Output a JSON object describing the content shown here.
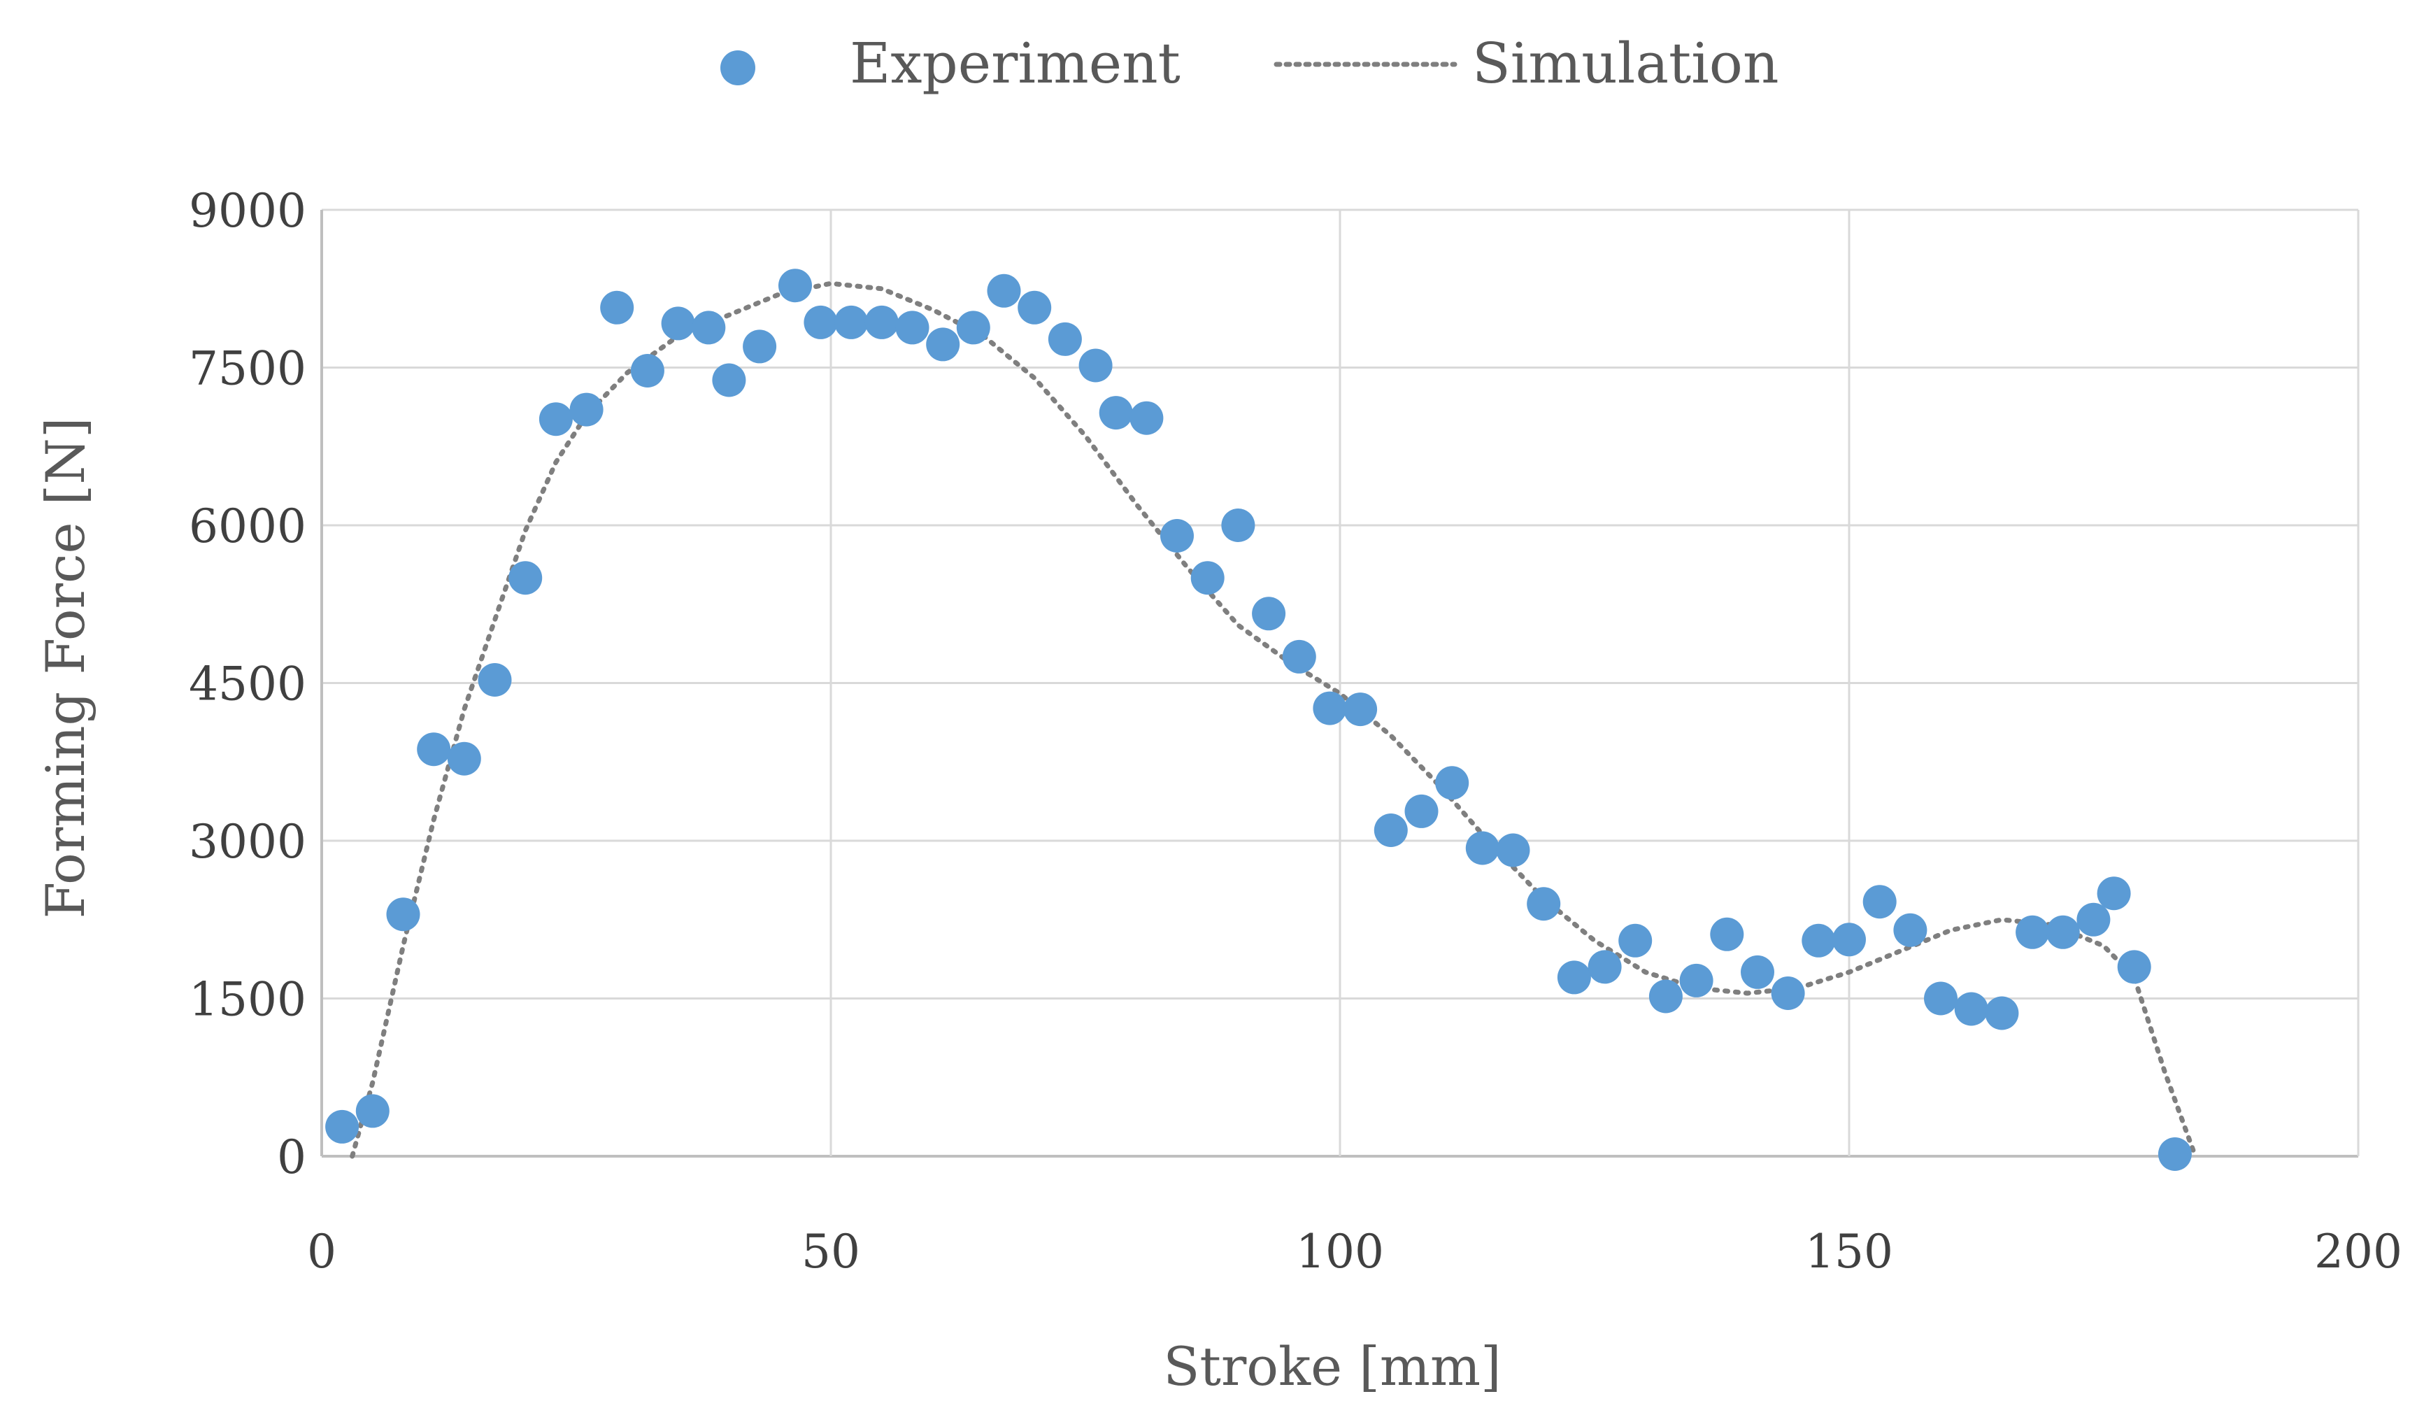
{
  "chart_data": {
    "type": "scatter",
    "title": "",
    "xlabel": "Stroke [mm]",
    "ylabel": "Forming Force [N]",
    "xlim": [
      0,
      200
    ],
    "ylim": [
      0,
      9000
    ],
    "xticks": [
      0,
      50,
      100,
      150,
      200
    ],
    "yticks": [
      0,
      1500,
      3000,
      4500,
      6000,
      7500,
      9000
    ],
    "grid": true,
    "legend_position": "top-center",
    "colors": {
      "experiment": "#5b9bd5",
      "simulation": "#7f7f7f",
      "grid": "#d9d9d9",
      "axis": "#bfbfbf"
    },
    "series": [
      {
        "name": "Experiment",
        "kind": "markers",
        "x": [
          2,
          5,
          8,
          11,
          14,
          17,
          20,
          23,
          26,
          29,
          32,
          35,
          38,
          40,
          43,
          46.5,
          49,
          52,
          55,
          58,
          61,
          64,
          67,
          70,
          73,
          76,
          78,
          81,
          84,
          87,
          90,
          93,
          96,
          99,
          102,
          105,
          108,
          111,
          114,
          117,
          120,
          123,
          126,
          129,
          132,
          135,
          138,
          141,
          144,
          147,
          150,
          153,
          156,
          159,
          162,
          165,
          168,
          171,
          174,
          176,
          178,
          182
        ],
        "y": [
          280,
          430,
          2300,
          3870,
          3780,
          4530,
          5500,
          7010,
          7100,
          8070,
          7470,
          7920,
          7880,
          7380,
          7700,
          8280,
          7930,
          7930,
          7930,
          7880,
          7720,
          7880,
          8230,
          8070,
          7770,
          7520,
          7070,
          7020,
          5900,
          5500,
          6000,
          5160,
          4750,
          4260,
          4250,
          3100,
          3280,
          3550,
          2930,
          2910,
          2400,
          1700,
          1800,
          2050,
          1520,
          1670,
          2110,
          1750,
          1550,
          2050,
          2060,
          2420,
          2150,
          1500,
          1400,
          1360,
          2130,
          2130,
          2250,
          2500,
          1800,
          20
        ]
      },
      {
        "name": "Simulation",
        "kind": "dotted-line",
        "x": [
          3,
          5,
          8,
          11,
          14,
          17,
          20,
          23,
          26,
          30,
          35,
          40,
          45,
          50,
          55,
          60,
          65,
          70,
          75,
          80,
          85,
          90,
          95,
          100,
          105,
          110,
          115,
          120,
          125,
          130,
          135,
          140,
          145,
          150,
          155,
          160,
          165,
          170,
          175,
          178,
          181,
          184
        ],
        "y": [
          0,
          700,
          2000,
          3200,
          4250,
          5100,
          5950,
          6600,
          7050,
          7450,
          7800,
          8000,
          8200,
          8300,
          8250,
          8050,
          7800,
          7400,
          6850,
          6200,
          5600,
          5050,
          4700,
          4400,
          4000,
          3500,
          2950,
          2450,
          2050,
          1750,
          1600,
          1550,
          1600,
          1750,
          1950,
          2150,
          2250,
          2200,
          2000,
          1700,
          800,
          0
        ]
      }
    ]
  }
}
